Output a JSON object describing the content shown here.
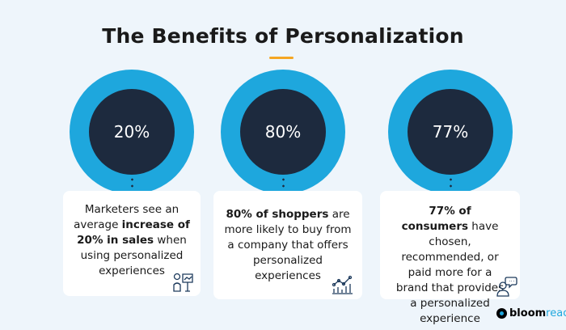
{
  "title": "The Benefits of Personalization",
  "accent_color": "#f5a623",
  "ring_color": "#1ea7dd",
  "core_color": "#1d2a3e",
  "stats": [
    {
      "value": "20%",
      "text": {
        "a": "Marketers see an average ",
        "b": "increase of 20% in sales",
        "c": " when using personalized experiences"
      },
      "icon": "presenter-chart-icon"
    },
    {
      "value": "80%",
      "text": {
        "a": "",
        "b": "80% of shoppers",
        "c": " are more likely to buy from a company that offers personalized experiences"
      },
      "icon": "growth-chart-icon"
    },
    {
      "value": "77%",
      "text": {
        "a": "",
        "b": "77% of consumers",
        "c": " have chosen, recommended, or paid more for a brand that provides a personalized experience"
      },
      "icon": "user-chat-icon"
    }
  ],
  "logo": {
    "part1": "bloom",
    "part2": "reach"
  }
}
